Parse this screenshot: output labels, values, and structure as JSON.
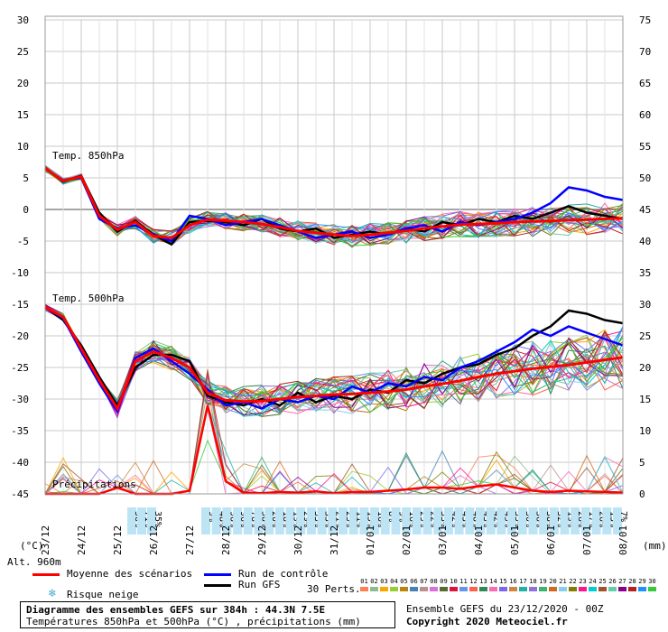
{
  "chart_data": {
    "type": "line",
    "left_axis": {
      "unit": "(°C)",
      "ticks": [
        30,
        25,
        20,
        15,
        10,
        5,
        0,
        -5,
        -10,
        -15,
        -20,
        -25,
        -30,
        -35,
        -40,
        -45
      ],
      "range": [
        -45,
        30
      ]
    },
    "right_axis": {
      "unit": "(mm)",
      "ticks": [
        75,
        70,
        65,
        60,
        55,
        50,
        45,
        40,
        35,
        30,
        25,
        20,
        15,
        10,
        5,
        0
      ],
      "range": [
        0,
        75
      ]
    },
    "x_labels": [
      "24/12",
      "25/12",
      "26/12",
      "27/12",
      "28/12",
      "29/12",
      "30/12",
      "31/12",
      "01/01",
      "02/01",
      "03/01",
      "04/01",
      "05/01",
      "06/01",
      "07/01",
      "08/01"
    ],
    "x_first_label": "23/12",
    "panel_labels": {
      "t850": "Temp. 850hPa",
      "t500": "Temp. 500hPa",
      "precip": "Précipitations"
    },
    "alt_label": "Alt. 960m",
    "x_hours": [
      0,
      12,
      24,
      36,
      48,
      60,
      72,
      84,
      96,
      108,
      120,
      132,
      144,
      156,
      168,
      180,
      192,
      204,
      216,
      228,
      240,
      252,
      264,
      276,
      288,
      300,
      312,
      324,
      336,
      348,
      360,
      372,
      384
    ],
    "series": [
      {
        "name": "Moyenne des scénarios",
        "color": "#ff0000",
        "t850": [
          6.5,
          4.5,
          5.2,
          -1.0,
          -3.2,
          -2.0,
          -4.2,
          -4.5,
          -2.5,
          -1.6,
          -1.8,
          -2.0,
          -2.3,
          -2.8,
          -3.4,
          -3.7,
          -4.0,
          -4.2,
          -4.0,
          -3.7,
          -3.4,
          -3.0,
          -2.7,
          -2.4,
          -2.3,
          -2.2,
          -2.0,
          -1.9,
          -1.8,
          -1.7,
          -1.6,
          -1.5,
          -1.4
        ],
        "t500": [
          -15.5,
          -17.0,
          -22.0,
          -27.0,
          -31.5,
          -24.0,
          -22.5,
          -23.5,
          -25.0,
          -29.0,
          -30.2,
          -30.4,
          -30.3,
          -30.0,
          -29.7,
          -29.5,
          -29.3,
          -29.2,
          -29.0,
          -28.8,
          -28.5,
          -28.0,
          -27.6,
          -27.1,
          -26.5,
          -26.0,
          -25.6,
          -25.2,
          -24.9,
          -24.6,
          -24.2,
          -23.8,
          -23.4
        ]
      },
      {
        "name": "Run de contrôle",
        "color": "#0000ff",
        "t850": [
          6.5,
          4.6,
          5.0,
          -1.5,
          -3.0,
          -2.5,
          -4.0,
          -5.0,
          -1.0,
          -1.5,
          -2.5,
          -2.0,
          -1.5,
          -2.5,
          -3.5,
          -4.5,
          -4.0,
          -3.5,
          -4.5,
          -4.0,
          -3.0,
          -2.5,
          -3.5,
          -2.0,
          -2.5,
          -2.0,
          -1.5,
          -0.5,
          1.0,
          3.5,
          3.0,
          2.0,
          1.5
        ],
        "t500": [
          -15.5,
          -17.2,
          -22.5,
          -27.5,
          -32.0,
          -23.5,
          -22.0,
          -24.0,
          -26.0,
          -28.5,
          -31.0,
          -30.5,
          -31.5,
          -30.0,
          -30.5,
          -29.5,
          -30.0,
          -28.0,
          -29.0,
          -27.5,
          -28.0,
          -26.5,
          -27.0,
          -25.0,
          -24.0,
          -22.5,
          -21.0,
          -19.0,
          -20.0,
          -18.5,
          -19.5,
          -20.5,
          -21.5
        ]
      },
      {
        "name": "Run GFS",
        "color": "#000000",
        "t850": [
          6.5,
          4.4,
          5.3,
          -0.5,
          -3.5,
          -1.8,
          -4.0,
          -5.5,
          -2.0,
          -1.8,
          -2.0,
          -2.5,
          -1.5,
          -3.0,
          -3.5,
          -3.0,
          -4.5,
          -4.0,
          -3.5,
          -4.0,
          -3.0,
          -3.5,
          -2.0,
          -2.5,
          -1.5,
          -2.0,
          -1.0,
          -1.5,
          -0.5,
          0.5,
          -0.5,
          -1.0,
          -1.5
        ],
        "t500": [
          -15.5,
          -17.5,
          -21.5,
          -26.5,
          -31.0,
          -25.0,
          -23.0,
          -23.0,
          -24.0,
          -29.5,
          -30.5,
          -31.0,
          -30.0,
          -31.0,
          -29.0,
          -30.5,
          -29.5,
          -30.0,
          -28.5,
          -29.0,
          -27.0,
          -27.5,
          -26.0,
          -25.0,
          -24.5,
          -23.0,
          -22.0,
          -20.0,
          -18.5,
          -16.0,
          -16.5,
          -17.5,
          -18.0
        ]
      }
    ],
    "precip_mean": [
      0,
      0,
      0,
      0,
      1.0,
      0,
      0,
      0,
      0.5,
      14,
      2.0,
      0.2,
      0.1,
      0.3,
      0.2,
      0.4,
      0.1,
      0.3,
      0.3,
      0.5,
      0.7,
      1.0,
      1.0,
      0.8,
      1.2,
      1.5,
      1.0,
      0.5,
      0.3,
      0.5,
      0.4,
      0.3,
      0.2
    ],
    "snow_risk": [
      "56%",
      "71%",
      "35%",
      "9%",
      "48%",
      "96%",
      "96%",
      "78%",
      "58%",
      "20%",
      "18%",
      "19%",
      "29%",
      "33%",
      "33%",
      "21%",
      "25%",
      "11%",
      "15%",
      "16%",
      "8%",
      "9%",
      "16%",
      "29%",
      "22%",
      "33%",
      "42%",
      "43%",
      "48%",
      "43%",
      "42%",
      "45%",
      "35%",
      "30%",
      "36%",
      "38%",
      "32%",
      "19%",
      "26%",
      "17%",
      "26%",
      "13%",
      "7%"
    ]
  },
  "legend": {
    "mean_label": "Moyenne des scénarios",
    "control_label": "Run de contrôle",
    "gfs_label": "Run GFS",
    "snow_label": "Risque neige",
    "perts_label": "30 Perts.",
    "pert_numbers": [
      "01",
      "02",
      "03",
      "04",
      "05",
      "06",
      "07",
      "08",
      "09",
      "10",
      "11",
      "12",
      "13",
      "14",
      "15",
      "16",
      "17",
      "18",
      "19",
      "20",
      "21",
      "22",
      "23",
      "24",
      "25",
      "26",
      "27",
      "28",
      "29",
      "30"
    ],
    "pert_colors": [
      "#ff7f50",
      "#8fbc8f",
      "#ffa500",
      "#9acd32",
      "#b8860b",
      "#4682b4",
      "#bc8f8f",
      "#da70d6",
      "#556b2f",
      "#dc143c",
      "#6495ed",
      "#ff6347",
      "#2e8b57",
      "#ff69b4",
      "#7b68ee",
      "#cd853f",
      "#20b2aa",
      "#9370db",
      "#3cb371",
      "#d2691e",
      "#87ceeb",
      "#808000",
      "#ff1493",
      "#00ced1",
      "#a0522d",
      "#66cdaa",
      "#8b008b",
      "#b22222",
      "#1e90ff",
      "#32cd32"
    ]
  },
  "footer": {
    "title": "Diagramme des ensembles GEFS sur 384h : 44.3N 7.5E",
    "subtitle": "Températures 850hPa et 500hPa (°C) , précipitations (mm)",
    "ensemble": "Ensemble GEFS du 23/12/2020 - 00Z",
    "copyright": "Copyright 2020 Meteociel.fr"
  }
}
